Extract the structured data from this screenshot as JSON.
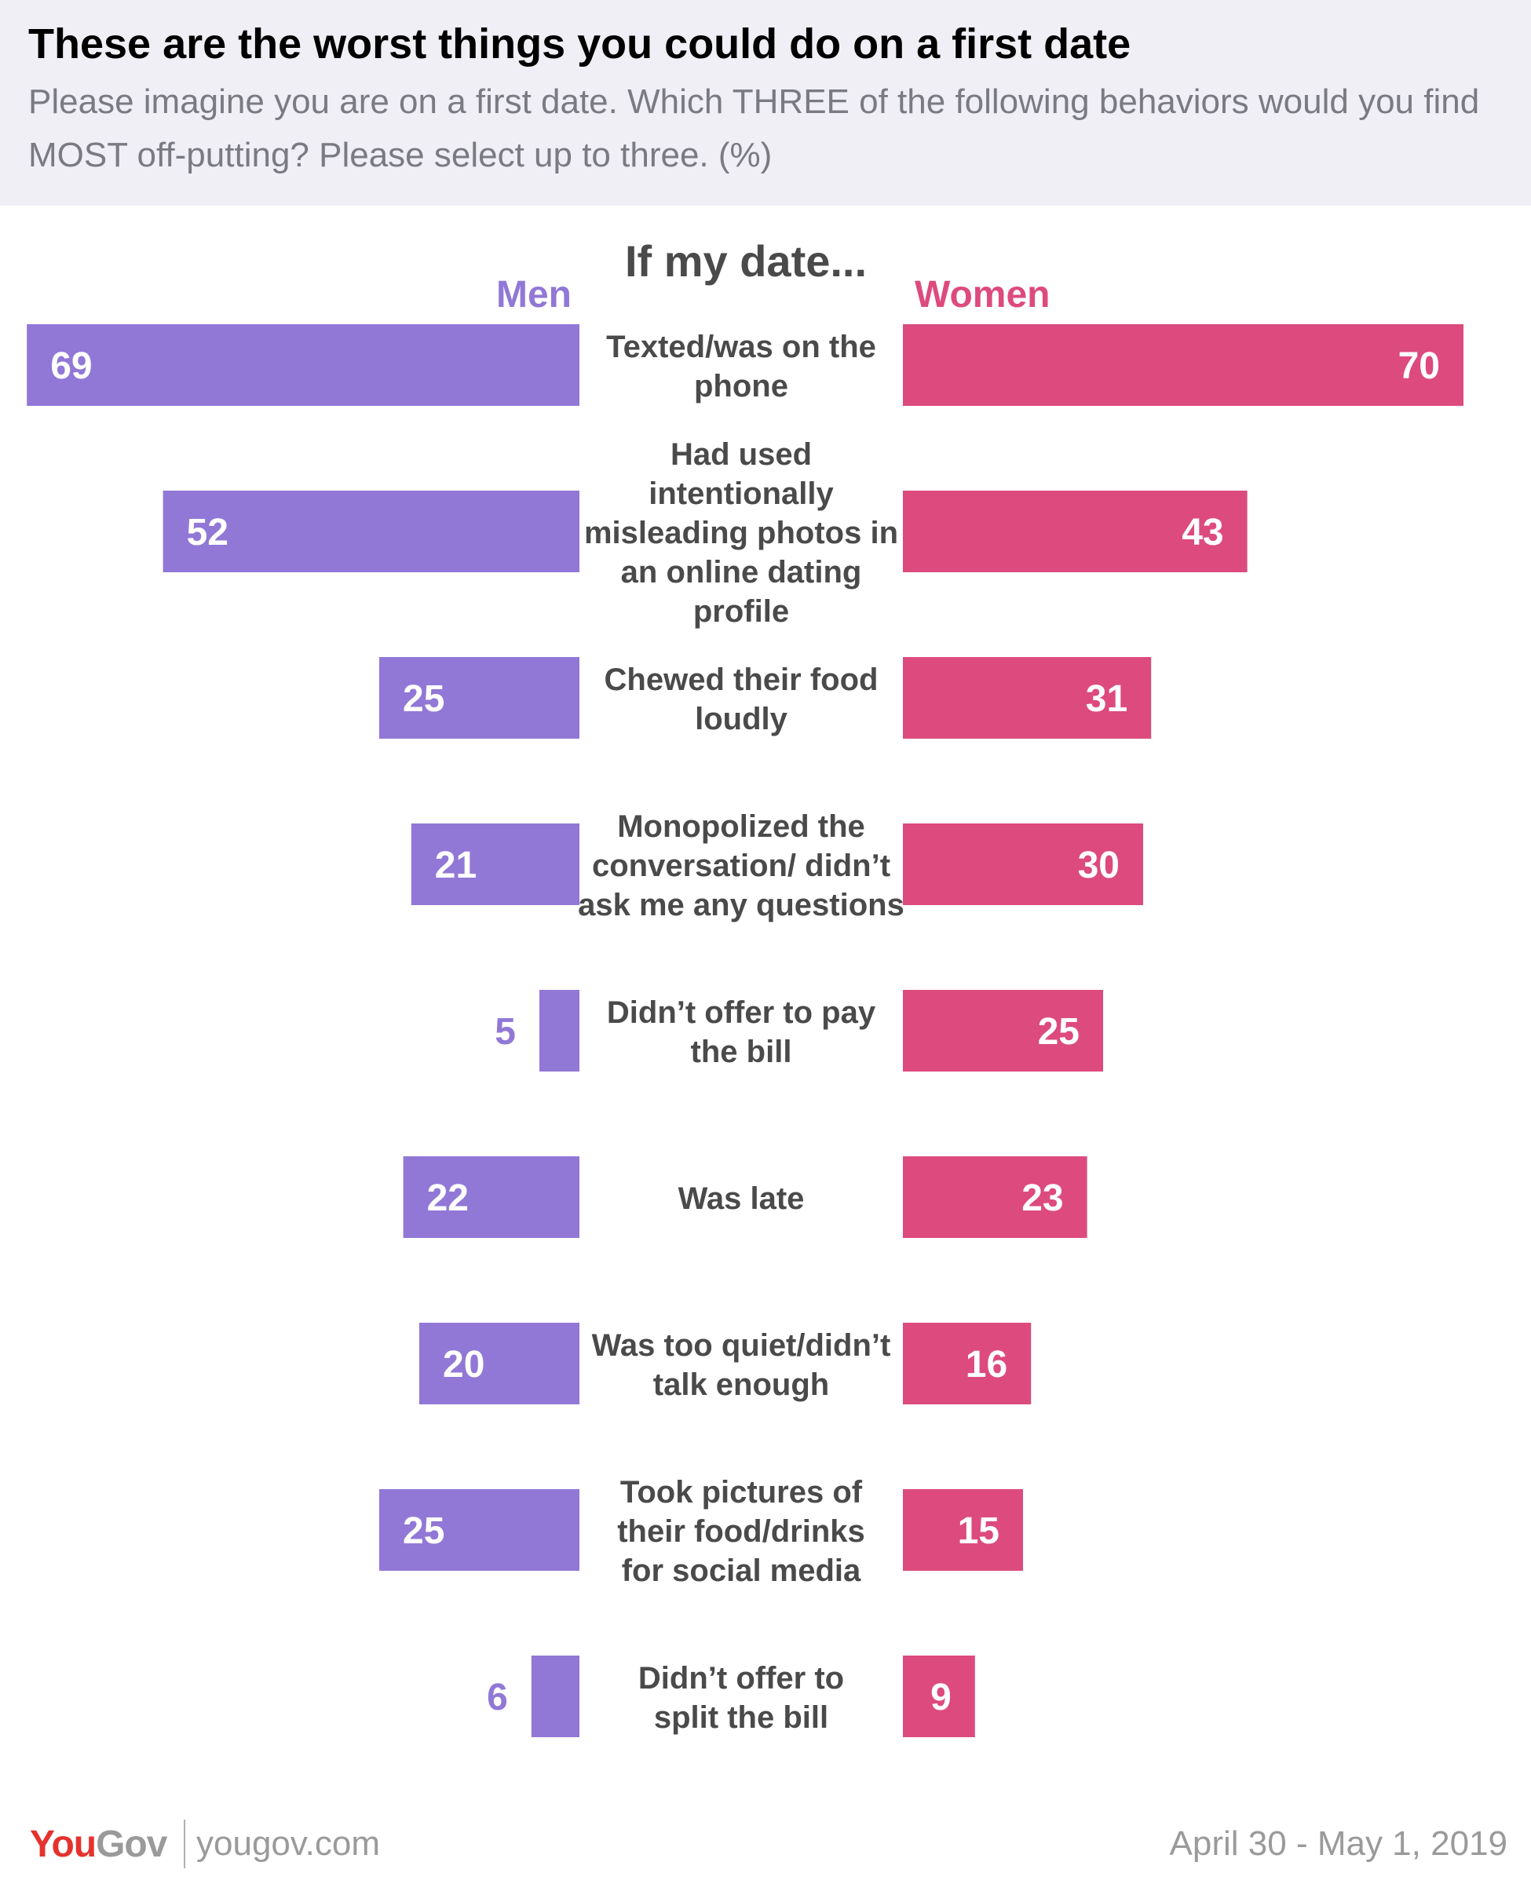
{
  "header": {
    "title": "These are the worst things you could do on a first date",
    "subtitle": "Please imagine you are on a first date. Which THREE of the following behaviors would you find MOST off-putting? Please select up to three. (%)"
  },
  "chart_data": {
    "type": "bar",
    "orientation": "horizontal-diverging",
    "category_header": "If my date...",
    "categories": [
      "Texted/was on the phone",
      "Had used intentionally misleading photos in an online dating profile",
      "Chewed their food loudly",
      "Monopolized the conversation/ didn’t ask me any questions",
      "Didn’t offer to pay the bill",
      "Was late",
      "Was too quiet/didn’t talk enough",
      "Took pictures of their food/drinks for social media",
      "Didn’t offer to split the bill"
    ],
    "series": [
      {
        "name": "Men",
        "color": "#9178d6",
        "values": [
          69,
          52,
          25,
          21,
          5,
          22,
          20,
          25,
          6
        ]
      },
      {
        "name": "Women",
        "color": "#dd4a7e",
        "values": [
          70,
          43,
          31,
          30,
          25,
          23,
          16,
          15,
          9
        ]
      }
    ],
    "xlim": [
      0,
      70
    ]
  },
  "footer": {
    "logo_you": "You",
    "logo_gov": "Gov",
    "site": "yougov.com",
    "date": "April 30 - May 1, 2019"
  },
  "colors": {
    "header_bg": "#efeff5",
    "men": "#9178d6",
    "women": "#dd4a7e",
    "label_text": "#4a4a4a",
    "brand_red": "#e4322e"
  }
}
